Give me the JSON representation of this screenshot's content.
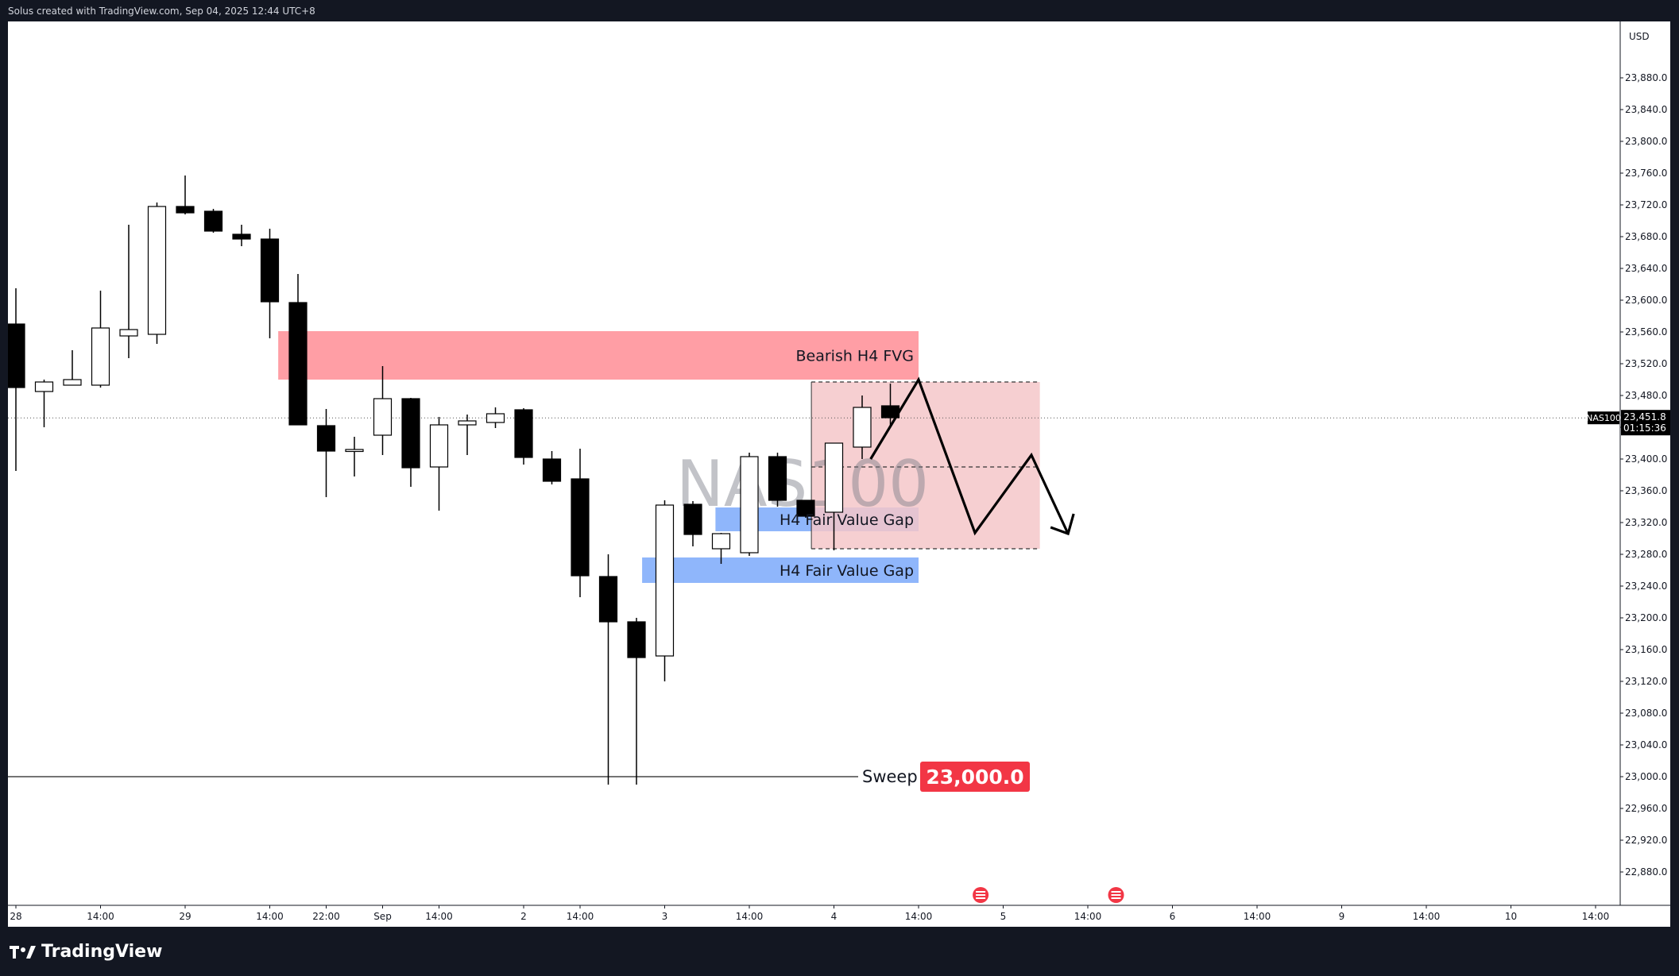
{
  "header": {
    "text": "Solus created with TradingView.com, Sep 04, 2025 12:44 UTC+8"
  },
  "brand": {
    "name": "TradingView"
  },
  "colors": {
    "bearish_candle": "#000000",
    "bullish_candle": "#ffffff",
    "bearish_fvg": "#ff9ea5",
    "bullish_fvg": "#8fb6fb",
    "projection_zone": "#f4c7c9",
    "sweep_badge": "#f23645",
    "event_marker": "#f23645"
  },
  "chart_data": {
    "type": "candlestick",
    "symbol_watermark": "NAS100",
    "currency": "USD",
    "ylim": [
      22850,
      23935
    ],
    "y_ticks": [
      "23,880.0",
      "23,840.0",
      "23,800.0",
      "23,760.0",
      "23,720.0",
      "23,680.0",
      "23,640.0",
      "23,600.0",
      "23,560.0",
      "23,520.0",
      "23,480.0",
      "23,440.0",
      "23,400.0",
      "23,360.0",
      "23,320.0",
      "23,280.0",
      "23,240.0",
      "23,200.0",
      "23,160.0",
      "23,120.0",
      "23,080.0",
      "23,040.0",
      "23,000.0",
      "22,960.0",
      "22,920.0",
      "22,880.0"
    ],
    "x_ticks": [
      {
        "i": 0,
        "label": "28"
      },
      {
        "i": 3,
        "label": "14:00"
      },
      {
        "i": 6,
        "label": "29"
      },
      {
        "i": 9,
        "label": "14:00"
      },
      {
        "i": 11,
        "label": "22:00"
      },
      {
        "i": 13,
        "label": "Sep"
      },
      {
        "i": 15,
        "label": "14:00"
      },
      {
        "i": 18,
        "label": "2"
      },
      {
        "i": 20,
        "label": "14:00"
      },
      {
        "i": 23,
        "label": "3"
      },
      {
        "i": 26,
        "label": "14:00"
      },
      {
        "i": 29,
        "label": "4"
      },
      {
        "i": 32,
        "label": "14:00"
      },
      {
        "i": 35,
        "label": "5"
      },
      {
        "i": 38,
        "label": "14:00"
      },
      {
        "i": 41,
        "label": "6"
      },
      {
        "i": 44,
        "label": "14:00"
      },
      {
        "i": 47,
        "label": "9"
      },
      {
        "i": 50,
        "label": "14:00"
      },
      {
        "i": 53,
        "label": "10"
      },
      {
        "i": 56,
        "label": "14:00"
      }
    ],
    "candles": [
      {
        "o": 23570,
        "h": 23615,
        "l": 23385,
        "c": 23490
      },
      {
        "o": 23485,
        "h": 23500,
        "l": 23440,
        "c": 23497
      },
      {
        "o": 23493,
        "h": 23537,
        "l": 23493,
        "c": 23500
      },
      {
        "o": 23493,
        "h": 23612,
        "l": 23490,
        "c": 23565
      },
      {
        "o": 23555,
        "h": 23695,
        "l": 23527,
        "c": 23563
      },
      {
        "o": 23557,
        "h": 23723,
        "l": 23545,
        "c": 23718
      },
      {
        "o": 23718,
        "h": 23757,
        "l": 23708,
        "c": 23710
      },
      {
        "o": 23712,
        "h": 23715,
        "l": 23685,
        "c": 23687
      },
      {
        "o": 23683,
        "h": 23695,
        "l": 23668,
        "c": 23677
      },
      {
        "o": 23677,
        "h": 23690,
        "l": 23552,
        "c": 23598
      },
      {
        "o": 23597,
        "h": 23633,
        "l": 23443,
        "c": 23443
      },
      {
        "o": 23442,
        "h": 23463,
        "l": 23352,
        "c": 23410
      },
      {
        "o": 23410,
        "h": 23428,
        "l": 23378,
        "c": 23412
      },
      {
        "o": 23430,
        "h": 23517,
        "l": 23405,
        "c": 23476
      },
      {
        "o": 23476,
        "h": 23477,
        "l": 23365,
        "c": 23389
      },
      {
        "o": 23390,
        "h": 23453,
        "l": 23335,
        "c": 23443
      },
      {
        "o": 23443,
        "h": 23456,
        "l": 23405,
        "c": 23448
      },
      {
        "o": 23446,
        "h": 23465,
        "l": 23439,
        "c": 23457
      },
      {
        "o": 23462,
        "h": 23464,
        "l": 23393,
        "c": 23402
      },
      {
        "o": 23400,
        "h": 23410,
        "l": 23368,
        "c": 23372
      },
      {
        "o": 23375,
        "h": 23413,
        "l": 23226,
        "c": 23253
      },
      {
        "o": 23252,
        "h": 23280,
        "l": 22990,
        "c": 23195
      },
      {
        "o": 23195,
        "h": 23200,
        "l": 22990,
        "c": 23150
      },
      {
        "o": 23152,
        "h": 23348,
        "l": 23120,
        "c": 23342
      },
      {
        "o": 23343,
        "h": 23347,
        "l": 23290,
        "c": 23305
      },
      {
        "o": 23287,
        "h": 23307,
        "l": 23268,
        "c": 23306
      },
      {
        "o": 23282,
        "h": 23408,
        "l": 23278,
        "c": 23403
      },
      {
        "o": 23403,
        "h": 23408,
        "l": 23340,
        "c": 23348
      },
      {
        "o": 23348,
        "h": 23348,
        "l": 23326,
        "c": 23328
      },
      {
        "o": 23333,
        "h": 23415,
        "l": 23285,
        "c": 23420
      },
      {
        "o": 23415,
        "h": 23480,
        "l": 23400,
        "c": 23465
      },
      {
        "o": 23467,
        "h": 23495,
        "l": 23442,
        "c": 23452
      }
    ],
    "price_line": {
      "symbol": "NAS100",
      "price": "23,451.8",
      "countdown": "01:15:36",
      "value": 23451.8
    },
    "zones": [
      {
        "label": "Bearish H4 FVG",
        "kind": "bearish_fvg",
        "x0": 9.3,
        "x1": 32,
        "top": 23561,
        "bottom": 23500
      },
      {
        "label": "H4 Fair Value Gap",
        "kind": "bullish_fvg",
        "x0": 24.8,
        "x1": 32,
        "top": 23339,
        "bottom": 23309
      },
      {
        "label": "H4 Fair Value Gap",
        "kind": "bullish_fvg",
        "x0": 22.2,
        "x1": 32,
        "top": 23276,
        "bottom": 23244
      },
      {
        "label": "",
        "kind": "projection",
        "x0": 28.2,
        "x1": 36.3,
        "top": 23497,
        "bottom": 23287
      }
    ],
    "projection_mid": 23390,
    "projection_path": [
      [
        30.3,
        23400
      ],
      [
        32,
        23500
      ],
      [
        34,
        23307
      ],
      [
        36,
        23405
      ],
      [
        37.3,
        23306
      ]
    ],
    "sweep": {
      "label": "Sweep",
      "value_label": "23,000.0",
      "value": 23000
    },
    "event_markers_at": [
      34.2,
      39
    ]
  }
}
